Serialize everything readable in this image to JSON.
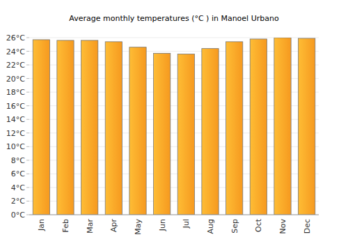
{
  "chart_data": {
    "type": "bar",
    "title": "Average monthly temperatures (°C ) in Manoel Urbano",
    "categories": [
      "Jan",
      "Feb",
      "Mar",
      "Apr",
      "May",
      "Jun",
      "Jul",
      "Aug",
      "Sep",
      "Oct",
      "Nov",
      "Dec"
    ],
    "values": [
      25.7,
      25.6,
      25.6,
      25.4,
      24.6,
      23.7,
      23.6,
      24.4,
      25.4,
      25.8,
      26.0,
      25.9
    ],
    "color": "#fca62a",
    "ylim": [
      0,
      26
    ],
    "yticks": [
      {
        "value": 0,
        "label": "0°C"
      },
      {
        "value": 2,
        "label": "2°C"
      },
      {
        "value": 4,
        "label": "4°C"
      },
      {
        "value": 6,
        "label": "6°C"
      },
      {
        "value": 8,
        "label": "8°C"
      },
      {
        "value": 10,
        "label": "10°C"
      },
      {
        "value": 12,
        "label": "12°C"
      },
      {
        "value": 14,
        "label": "14°C"
      },
      {
        "value": 16,
        "label": "16°C"
      },
      {
        "value": 18,
        "label": "18°C"
      },
      {
        "value": 20,
        "label": "20°C"
      },
      {
        "value": 22,
        "label": "22°C"
      },
      {
        "value": 24,
        "label": "24°C"
      },
      {
        "value": 26,
        "label": "26°C"
      }
    ],
    "grid": true
  }
}
